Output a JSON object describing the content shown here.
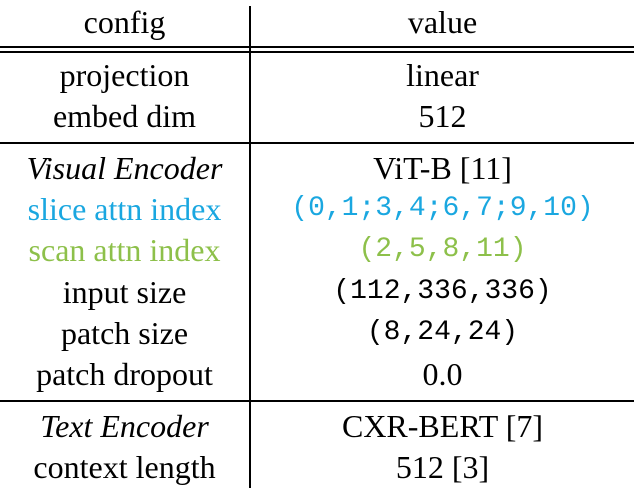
{
  "colors": {
    "slice": "#1aa7e0",
    "scan": "#8dc04a",
    "text": "#000000"
  },
  "header": {
    "col1": "config",
    "col2": "value"
  },
  "rows": {
    "projection": {
      "label": "projection",
      "value": "linear"
    },
    "embed_dim": {
      "label": "embed dim",
      "value": "512"
    },
    "visual_encoder": {
      "label": "Visual Encoder",
      "value": "ViT-B [11]"
    },
    "slice_attn": {
      "label": "slice attn index",
      "value": "(0,1;3,4;6,7;9,10)"
    },
    "scan_attn": {
      "label": "scan attn index",
      "value": "(2,5,8,11)"
    },
    "input_size": {
      "label": "input size",
      "value": "(112,336,336)"
    },
    "patch_size": {
      "label": "patch size",
      "value": "(8,24,24)"
    },
    "patch_dropout": {
      "label": "patch dropout",
      "value": "0.0"
    },
    "text_encoder": {
      "label": "Text Encoder",
      "value": "CXR-BERT [7]"
    },
    "context_length": {
      "label": "context length",
      "value": "512 [3]"
    }
  }
}
